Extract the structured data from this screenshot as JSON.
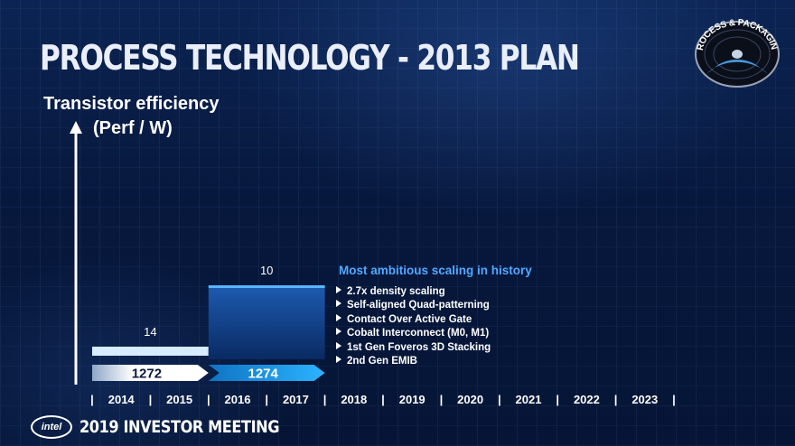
{
  "slide": {
    "title": "PROCESS TECHNOLOGY - 2013 PLAN",
    "badge_text": "PROCESS & PACKAGING",
    "footer": {
      "logo_text": "intel",
      "event_text": "2019 INVESTOR MEETING"
    }
  },
  "colors": {
    "background": "#07183d",
    "accent_blue": "#52a8ff",
    "bar_10nm": "#1a4f9e",
    "bar_14nm": "#d7ecff",
    "chevron_1272": "#ffffff",
    "chevron_1274": "#1fa3f0"
  },
  "chart_data": {
    "type": "bar",
    "ylabel": [
      "Transistor efficiency",
      "(Perf / W)"
    ],
    "x": [
      "2014",
      "2015",
      "2016",
      "2017",
      "2018",
      "2019",
      "2020",
      "2021",
      "2022",
      "2023"
    ],
    "series": [
      {
        "name": "14",
        "start": "2014",
        "end": "2015",
        "level": 1
      },
      {
        "name": "10",
        "start": "2016",
        "end": "2017",
        "level": 2
      }
    ],
    "process_codes": [
      {
        "label": "1272",
        "start": "2014",
        "end": "2015"
      },
      {
        "label": "1274",
        "start": "2016",
        "end": "2017"
      }
    ],
    "annotation": {
      "heading": "Most ambitious scaling in history",
      "items": [
        "2.7x density scaling",
        "Self-aligned Quad-patterning",
        "Contact Over Active Gate",
        "Cobalt Interconnect (M0, M1)",
        "1st Gen Foveros 3D Stacking",
        "2nd Gen EMIB"
      ]
    }
  }
}
